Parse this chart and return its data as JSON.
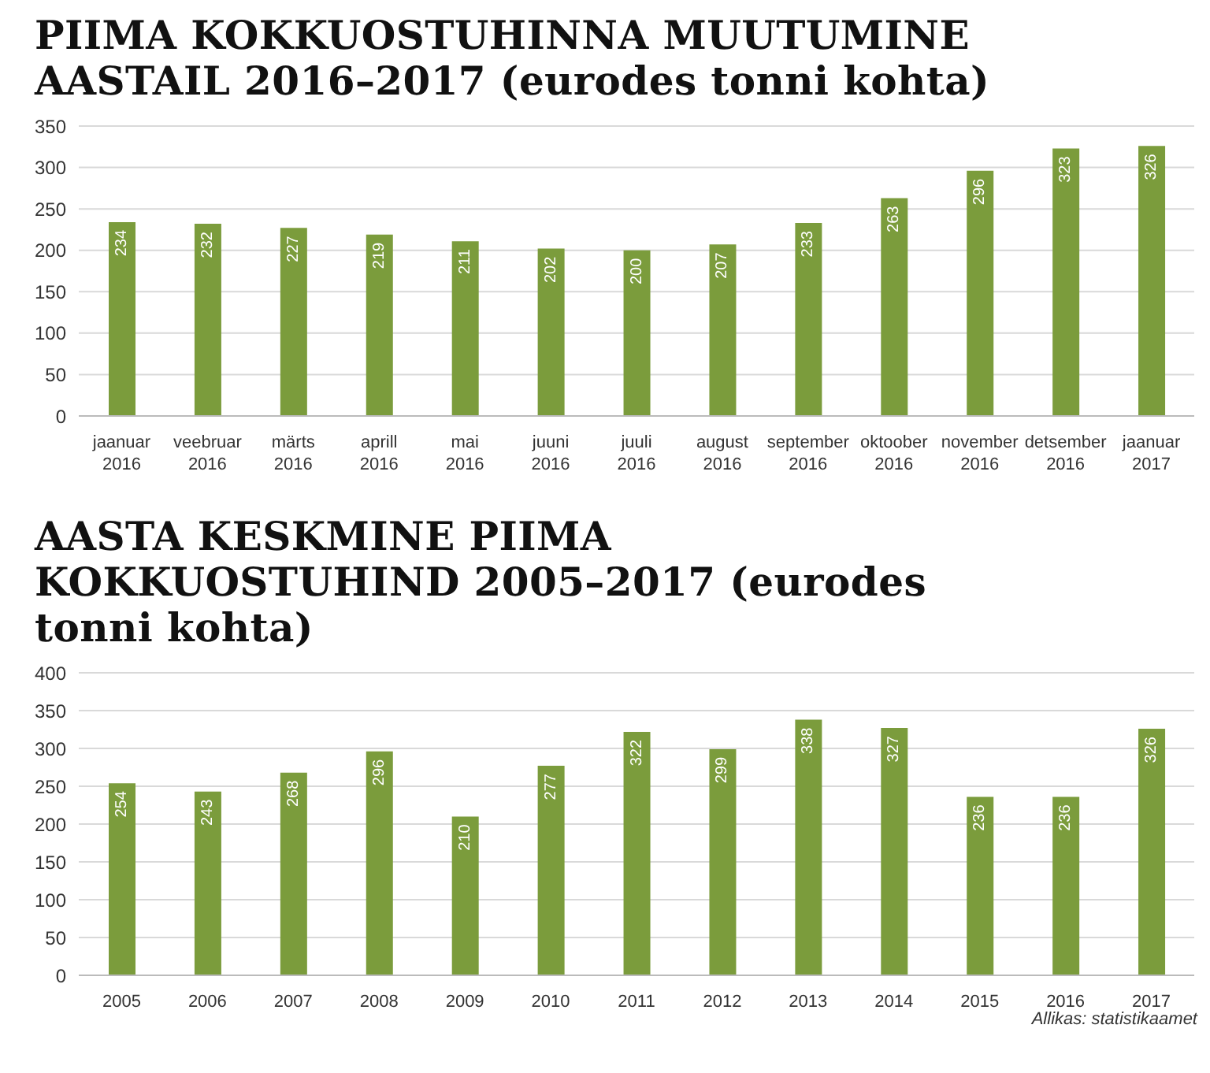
{
  "chart_data": [
    {
      "type": "bar",
      "title": "PIIMA KOKKUOSTUHINNA MUUTUMINE AASTAIL 2016–2017 (eurodes tonni kohta)",
      "categories": [
        "jaanuar 2016",
        "veebruar 2016",
        "märts 2016",
        "aprill 2016",
        "mai 2016",
        "juuni 2016",
        "juuli 2016",
        "august 2016",
        "september 2016",
        "oktoober 2016",
        "november 2016",
        "detsember 2016",
        "jaanuar 2017"
      ],
      "values": [
        234,
        232,
        227,
        219,
        211,
        202,
        200,
        207,
        233,
        263,
        296,
        323,
        326
      ],
      "color": "#7b9c3c",
      "ylim": [
        0,
        350
      ],
      "yticks": [
        0,
        50,
        100,
        150,
        200,
        250,
        300,
        350
      ],
      "grid": "y",
      "data_labels": true
    },
    {
      "type": "bar",
      "title": "AASTA KESKMINE PIIMA KOKKUOSTUHIND 2005–2017 (eurodes tonni kohta)",
      "categories": [
        "2005",
        "2006",
        "2007",
        "2008",
        "2009",
        "2010",
        "2011",
        "2012",
        "2013",
        "2014",
        "2015",
        "2016",
        "2017"
      ],
      "values": [
        254,
        243,
        268,
        296,
        210,
        277,
        322,
        299,
        338,
        327,
        236,
        236,
        326
      ],
      "color": "#7b9c3c",
      "ylim": [
        0,
        400
      ],
      "yticks": [
        0,
        50,
        100,
        150,
        200,
        250,
        300,
        350,
        400
      ],
      "grid": "y",
      "data_labels": true,
      "annotations": [
        "Allikas: statistikaamet"
      ]
    }
  ]
}
